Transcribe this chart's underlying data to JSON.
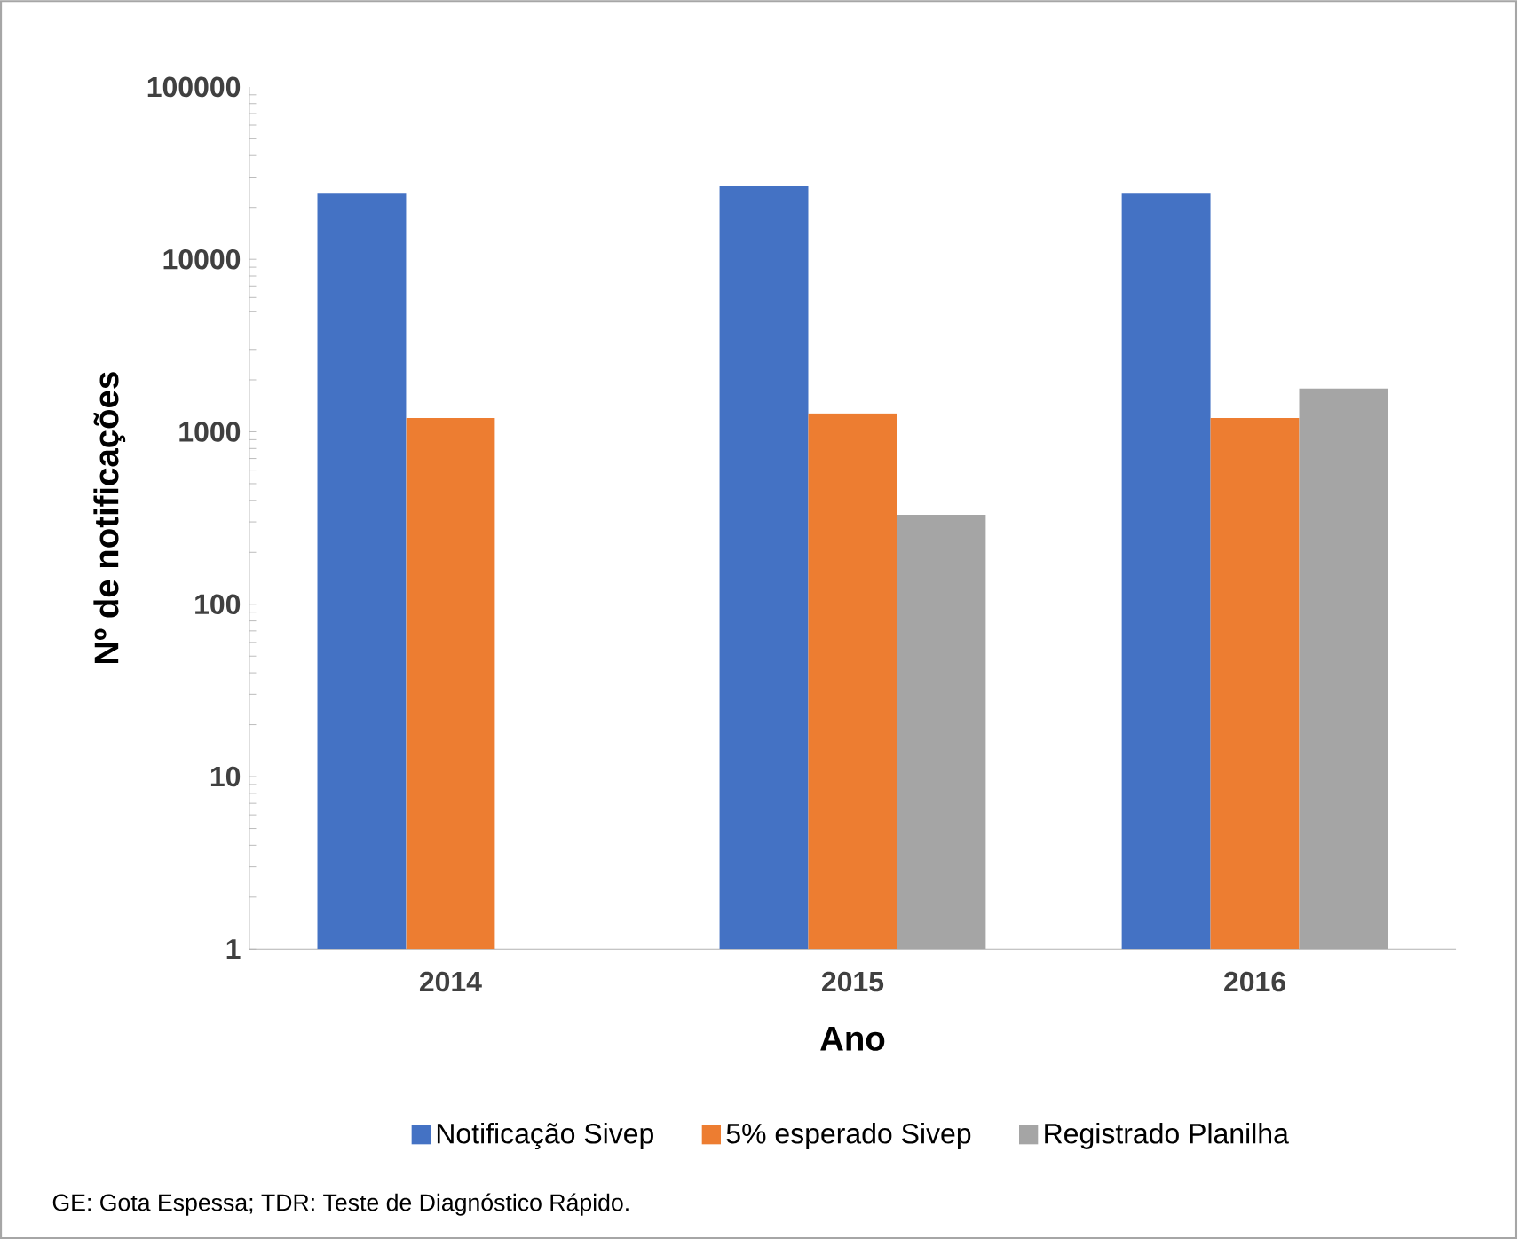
{
  "chart_data": {
    "type": "bar",
    "xlabel": "Ano",
    "ylabel": "Nº de notificações",
    "categories": [
      "2014",
      "2015",
      "2016"
    ],
    "series": [
      {
        "name": "Notificação Sivep",
        "color": "#4472c4",
        "values": [
          24000,
          26500,
          24000
        ]
      },
      {
        "name": "5% esperado Sivep",
        "color": "#ed7d31",
        "values": [
          1200,
          1280,
          1200
        ]
      },
      {
        "name": "Registrado Planilha",
        "color": "#a5a5a5",
        "values": [
          null,
          330,
          1780
        ]
      }
    ],
    "log": "y",
    "ylim": [
      1,
      100000
    ],
    "yticks": [
      1,
      10,
      100,
      1000,
      10000,
      100000
    ],
    "legend": "bottom",
    "grid": false,
    "annotations": [
      "GE: Gota Espessa; TDR: Teste de Diagnóstico Rápido."
    ]
  }
}
